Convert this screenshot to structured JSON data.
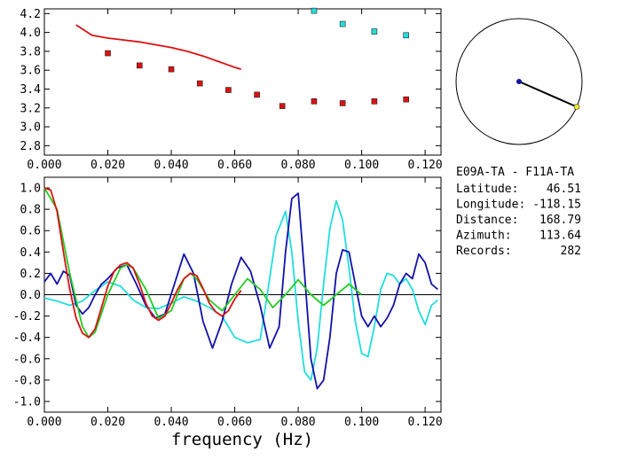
{
  "pair": {
    "title": "E09A-TA - F11A-TA",
    "rows": [
      {
        "label": "Latitude:",
        "value": "46.51"
      },
      {
        "label": "Longitude:",
        "value": "-118.15"
      },
      {
        "label": "Distance:",
        "value": "168.79"
      },
      {
        "label": "Azimuth:",
        "value": "113.64"
      },
      {
        "label": "Records:",
        "value": "282"
      }
    ]
  },
  "colors": {
    "red": "#dd1111",
    "cyan": "#22dddd",
    "blue": "#1111aa",
    "green": "#22cc22",
    "axis": "#000000"
  },
  "chart_data": [
    {
      "type": "scatter",
      "xlim": [
        0.0,
        0.125
      ],
      "ylim": [
        2.7,
        4.25
      ],
      "xticks": [
        "0.000",
        "0.020",
        "0.040",
        "0.060",
        "0.080",
        "0.100",
        "0.120"
      ],
      "yticks": [
        "2.8",
        "3.0",
        "3.2",
        "3.4",
        "3.6",
        "3.8",
        "4.0",
        "4.2"
      ],
      "xlabel": "",
      "ylabel": "",
      "series": [
        {
          "color": "red",
          "marker": "square",
          "x": [
            0.02,
            0.03,
            0.04,
            0.049,
            0.058,
            0.067,
            0.075,
            0.085,
            0.094,
            0.104,
            0.114
          ],
          "y": [
            3.78,
            3.65,
            3.61,
            3.46,
            3.39,
            3.34,
            3.22,
            3.27,
            3.25,
            3.27,
            3.29
          ]
        },
        {
          "color": "cyan",
          "marker": "square",
          "x": [
            0.085,
            0.094,
            0.104,
            0.114
          ],
          "y": [
            4.23,
            4.09,
            4.01,
            3.97
          ]
        },
        {
          "color": "red",
          "marker": "line",
          "x": [
            0.01,
            0.015,
            0.02,
            0.025,
            0.03,
            0.035,
            0.04,
            0.045,
            0.05,
            0.055,
            0.06,
            0.062
          ],
          "y": [
            4.08,
            3.97,
            3.94,
            3.92,
            3.9,
            3.87,
            3.84,
            3.8,
            3.75,
            3.69,
            3.63,
            3.61
          ]
        }
      ]
    },
    {
      "type": "line",
      "xlim": [
        0.0,
        0.125
      ],
      "ylim": [
        -1.1,
        1.1
      ],
      "xticks": [
        "0.000",
        "0.020",
        "0.040",
        "0.060",
        "0.080",
        "0.100",
        "0.120"
      ],
      "yticks": [
        "1.0",
        "0.8",
        "0.6",
        "0.4",
        "0.2",
        "0.0",
        "-0.2",
        "-0.4",
        "-0.6",
        "-0.8",
        "-1.0"
      ],
      "xlabel": "frequency (Hz)",
      "ylabel": "",
      "zero_line": true,
      "series": [
        {
          "color": "cyan",
          "x": [
            0.0,
            0.004,
            0.008,
            0.012,
            0.016,
            0.02,
            0.024,
            0.028,
            0.032,
            0.036,
            0.04,
            0.044,
            0.048,
            0.052,
            0.056,
            0.06,
            0.064,
            0.068,
            0.07,
            0.073,
            0.076,
            0.078,
            0.08,
            0.082,
            0.084,
            0.086,
            0.088,
            0.09,
            0.092,
            0.094,
            0.096,
            0.098,
            0.1,
            0.102,
            0.104,
            0.106,
            0.108,
            0.11,
            0.112,
            0.114,
            0.116,
            0.118,
            0.12,
            0.122,
            0.124
          ],
          "y": [
            -0.03,
            -0.06,
            -0.1,
            -0.06,
            0.04,
            0.12,
            0.08,
            -0.05,
            -0.12,
            -0.13,
            -0.08,
            -0.02,
            -0.06,
            -0.12,
            -0.2,
            -0.4,
            -0.45,
            -0.42,
            -0.05,
            0.55,
            0.78,
            0.4,
            -0.25,
            -0.72,
            -0.8,
            -0.5,
            0.1,
            0.62,
            0.88,
            0.7,
            0.25,
            -0.25,
            -0.55,
            -0.58,
            -0.3,
            0.05,
            0.2,
            0.18,
            0.1,
            0.15,
            0.05,
            -0.15,
            -0.28,
            -0.1,
            -0.05
          ]
        },
        {
          "color": "blue",
          "x": [
            0.0,
            0.002,
            0.004,
            0.006,
            0.008,
            0.01,
            0.012,
            0.014,
            0.016,
            0.018,
            0.02,
            0.023,
            0.026,
            0.029,
            0.032,
            0.035,
            0.038,
            0.041,
            0.044,
            0.047,
            0.05,
            0.053,
            0.056,
            0.059,
            0.062,
            0.065,
            0.068,
            0.071,
            0.074,
            0.076,
            0.078,
            0.08,
            0.082,
            0.084,
            0.086,
            0.088,
            0.09,
            0.092,
            0.094,
            0.096,
            0.098,
            0.1,
            0.102,
            0.104,
            0.106,
            0.108,
            0.11,
            0.112,
            0.114,
            0.116,
            0.118,
            0.12,
            0.122,
            0.124
          ],
          "y": [
            0.12,
            0.2,
            0.1,
            0.22,
            0.18,
            -0.1,
            -0.18,
            -0.12,
            0.0,
            0.1,
            0.15,
            0.25,
            0.28,
            0.1,
            -0.1,
            -0.22,
            -0.18,
            0.1,
            0.38,
            0.2,
            -0.25,
            -0.5,
            -0.25,
            0.1,
            0.35,
            0.22,
            -0.1,
            -0.5,
            -0.3,
            0.4,
            0.9,
            0.95,
            0.2,
            -0.6,
            -0.88,
            -0.8,
            -0.4,
            0.2,
            0.42,
            0.4,
            0.1,
            -0.2,
            -0.3,
            -0.2,
            -0.3,
            -0.22,
            -0.1,
            0.1,
            0.2,
            0.15,
            0.38,
            0.3,
            0.1,
            0.05
          ]
        },
        {
          "color": "green",
          "x": [
            0.0,
            0.004,
            0.008,
            0.012,
            0.014,
            0.016,
            0.02,
            0.024,
            0.026,
            0.028,
            0.032,
            0.036,
            0.04,
            0.044,
            0.046,
            0.048,
            0.052,
            0.056,
            0.06,
            0.064,
            0.068,
            0.072,
            0.076,
            0.08,
            0.084,
            0.088,
            0.092,
            0.096,
            0.1
          ],
          "y": [
            1.0,
            0.8,
            0.2,
            -0.3,
            -0.4,
            -0.35,
            0.0,
            0.25,
            0.28,
            0.25,
            0.05,
            -0.22,
            -0.15,
            0.15,
            0.2,
            0.15,
            -0.05,
            -0.15,
            0.0,
            0.15,
            0.05,
            -0.12,
            0.0,
            0.14,
            0.0,
            -0.1,
            0.0,
            0.1,
            0.0
          ]
        },
        {
          "color": "red",
          "x": [
            0.0,
            0.002,
            0.004,
            0.006,
            0.008,
            0.01,
            0.012,
            0.014,
            0.016,
            0.018,
            0.02,
            0.022,
            0.024,
            0.026,
            0.028,
            0.03,
            0.032,
            0.034,
            0.036,
            0.038,
            0.04,
            0.042,
            0.044,
            0.046,
            0.048,
            0.05,
            0.052,
            0.054,
            0.056,
            0.058,
            0.06,
            0.062
          ],
          "y": [
            1.0,
            0.98,
            0.78,
            0.4,
            0.05,
            -0.22,
            -0.36,
            -0.4,
            -0.32,
            -0.12,
            0.08,
            0.22,
            0.28,
            0.3,
            0.25,
            0.1,
            -0.08,
            -0.2,
            -0.24,
            -0.2,
            -0.08,
            0.05,
            0.15,
            0.2,
            0.18,
            0.06,
            -0.08,
            -0.16,
            -0.2,
            -0.15,
            -0.04,
            0.04
          ]
        }
      ]
    },
    {
      "type": "polar",
      "azimuth_deg": 113.64,
      "radius_fraction": 1.0,
      "line_color": "black",
      "center_marker_color": "blue",
      "end_marker_color": "yellow"
    }
  ]
}
